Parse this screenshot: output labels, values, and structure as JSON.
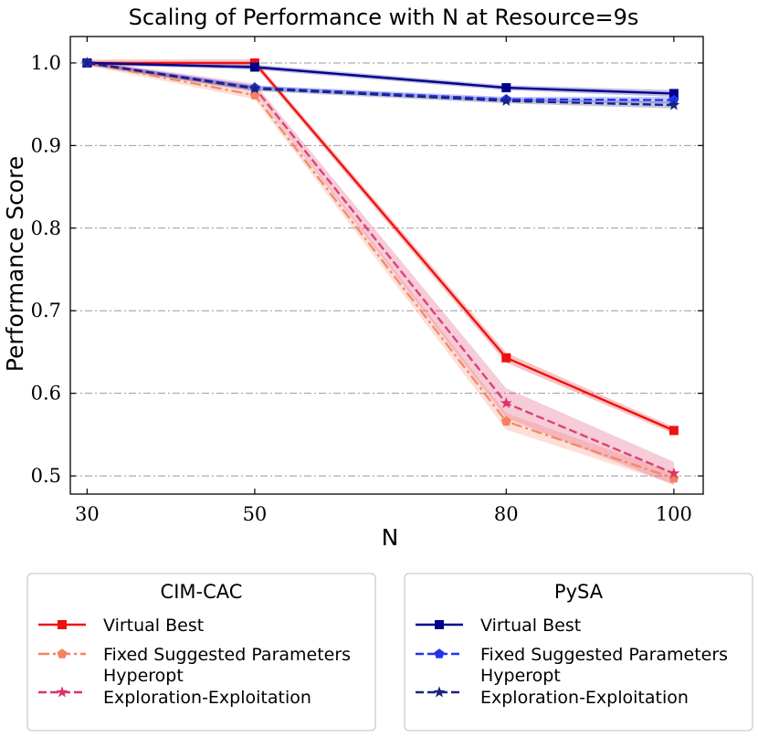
{
  "chart_data": {
    "type": "line",
    "title": "Scaling of Performance with N at Resource=9s",
    "xlabel": "N",
    "ylabel": "Performance Score",
    "x": [
      30,
      50,
      80,
      100
    ],
    "x_ticks": [
      "30",
      "50",
      "80",
      "100"
    ],
    "xlim": [
      28,
      103.5
    ],
    "ylim": [
      0.478,
      1.032
    ],
    "y_ticks": [
      "0.5",
      "0.6",
      "0.7",
      "0.8",
      "0.9",
      "1.0"
    ],
    "y_tick_values": [
      0.5,
      0.6,
      0.7,
      0.8,
      0.9,
      1.0
    ],
    "grid": "horizontal dash-dot",
    "legend_groups": [
      {
        "title": "CIM-CAC",
        "position": "bottom-left",
        "series": [
          {
            "name": "Virtual Best",
            "name_lines": [
              "Virtual Best"
            ],
            "values": [
              1.0,
              1.0,
              0.643,
              0.555
            ],
            "band": [
              0.004,
              0.004,
              0.006,
              0.004
            ],
            "color": "#ee1111",
            "dash": "solid",
            "marker": "square",
            "opacity": 1
          },
          {
            "name": "Fixed Suggested Parameters",
            "name_lines": [
              "Fixed Suggested Parameters"
            ],
            "values": [
              1.0,
              0.961,
              0.566,
              0.497
            ],
            "band": [
              0.003,
              0.005,
              0.01,
              0.007
            ],
            "color": "#f4825f",
            "dash": "dashdot",
            "marker": "pentagon",
            "opacity": 0.9
          },
          {
            "name": "Hyperopt Exploration-Exploitation",
            "name_lines": [
              "Hyperopt",
              "Exploration-Exploitation"
            ],
            "values": [
              1.0,
              0.97,
              0.588,
              0.503
            ],
            "band": [
              0.003,
              0.005,
              0.018,
              0.014
            ],
            "color": "#dd3366",
            "dash": "dashed",
            "marker": "star",
            "opacity": 0.9
          }
        ]
      },
      {
        "title": "PySA",
        "position": "bottom-right",
        "series": [
          {
            "name": "Virtual Best",
            "name_lines": [
              "Virtual Best"
            ],
            "values": [
              1.0,
              0.995,
              0.97,
              0.963
            ],
            "band": [
              0.002,
              0.003,
              0.003,
              0.004
            ],
            "color": "#00008b",
            "dash": "solid",
            "marker": "square",
            "opacity": 1
          },
          {
            "name": "Fixed Suggested Parameters",
            "name_lines": [
              "Fixed Suggested Parameters"
            ],
            "values": [
              1.0,
              0.97,
              0.956,
              0.955
            ],
            "band": [
              0.002,
              0.003,
              0.003,
              0.004
            ],
            "color": "#2233ee",
            "dash": "dashed",
            "marker": "pentagon",
            "opacity": 1
          },
          {
            "name": "Hyperopt Exploration-Exploitation",
            "name_lines": [
              "Hyperopt",
              "Exploration-Exploitation"
            ],
            "values": [
              1.0,
              0.969,
              0.954,
              0.949
            ],
            "band": [
              0.002,
              0.003,
              0.003,
              0.004
            ],
            "color": "#1a237e",
            "dash": "dashed",
            "marker": "star",
            "opacity": 1
          }
        ]
      }
    ]
  }
}
